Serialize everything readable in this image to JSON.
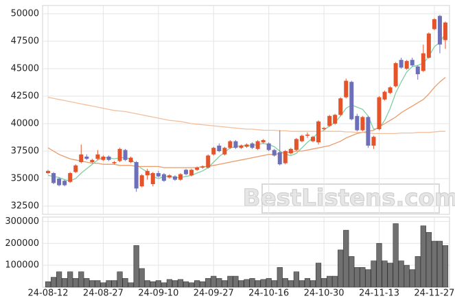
{
  "chart_data": [
    {
      "type": "candlestick",
      "categories": [
        "24-08-12",
        null,
        null,
        null,
        null,
        null,
        null,
        null,
        null,
        null,
        "24-08-27",
        null,
        null,
        null,
        null,
        null,
        null,
        null,
        null,
        null,
        "24-09-10",
        null,
        null,
        null,
        null,
        null,
        null,
        null,
        null,
        null,
        "24-09-27",
        null,
        null,
        null,
        null,
        null,
        null,
        null,
        null,
        null,
        "24-10-16",
        null,
        null,
        null,
        null,
        null,
        null,
        null,
        null,
        null,
        "24-10-30",
        null,
        null,
        null,
        null,
        null,
        null,
        null,
        null,
        null,
        "24-11-13",
        null,
        null,
        null,
        null,
        null,
        null,
        null,
        null,
        null,
        "24-11-27",
        null,
        null
      ],
      "open": [
        35500,
        35500,
        35000,
        34800,
        34700,
        35600,
        36500,
        37000,
        36500,
        36800,
        36700,
        37000,
        36400,
        36600,
        37600,
        36500,
        36500,
        34300,
        35300,
        34500,
        35500,
        35400,
        35100,
        35200,
        34900,
        35800,
        35300,
        35800,
        36000,
        36000,
        37200,
        38000,
        37200,
        37800,
        38400,
        37800,
        37900,
        38200,
        37700,
        38300,
        38200,
        37600,
        37400,
        36400,
        37300,
        37600,
        38400,
        38900,
        38400,
        38300,
        39500,
        39800,
        40000,
        40800,
        42400,
        43800,
        40700,
        39400,
        40600,
        38000,
        39500,
        42200,
        42800,
        43400,
        45800,
        45000,
        45800,
        45200,
        44800,
        46000,
        48600,
        49800,
        47600
      ],
      "high": [
        35800,
        35600,
        35100,
        34900,
        35600,
        36300,
        38100,
        37200,
        36800,
        37600,
        37100,
        37100,
        36600,
        37800,
        37700,
        37000,
        36600,
        35400,
        35900,
        35600,
        35700,
        35500,
        35400,
        35300,
        35500,
        35900,
        35900,
        36100,
        36200,
        37200,
        37900,
        38200,
        37900,
        38500,
        38500,
        38100,
        38200,
        38300,
        38500,
        38600,
        38300,
        37700,
        39400,
        37600,
        37800,
        38700,
        39000,
        39200,
        38900,
        40300,
        39700,
        40800,
        40900,
        42400,
        44100,
        43900,
        40900,
        40700,
        40700,
        38900,
        42500,
        43000,
        43400,
        45600,
        46000,
        45800,
        46000,
        45300,
        47200,
        48300,
        49600,
        49900,
        49300
      ],
      "low": [
        35400,
        34500,
        34300,
        34300,
        34600,
        35500,
        36400,
        36700,
        36400,
        36700,
        36600,
        36600,
        36300,
        36500,
        36600,
        36400,
        33800,
        34200,
        34900,
        34300,
        35100,
        34700,
        35000,
        34800,
        34800,
        35300,
        35200,
        35700,
        35900,
        35900,
        37100,
        37400,
        37100,
        37700,
        37700,
        37700,
        37800,
        37700,
        37600,
        38200,
        37500,
        37000,
        36200,
        36300,
        37200,
        37500,
        38300,
        38700,
        38300,
        38100,
        39400,
        39700,
        39900,
        40700,
        42300,
        40300,
        39300,
        39300,
        37800,
        37700,
        39400,
        42100,
        42700,
        43300,
        45000,
        44900,
        45200,
        44000,
        44700,
        45900,
        48500,
        46400,
        46800
      ],
      "close": [
        35700,
        34600,
        34400,
        34400,
        35500,
        36200,
        37200,
        36800,
        36700,
        37200,
        37000,
        36700,
        36500,
        37700,
        36700,
        36900,
        34100,
        35300,
        35700,
        35500,
        35200,
        34800,
        35300,
        34900,
        35400,
        35400,
        35800,
        36000,
        36100,
        37100,
        37800,
        37500,
        37800,
        38400,
        37800,
        38000,
        38100,
        37800,
        38400,
        38500,
        37600,
        37100,
        36300,
        37500,
        37700,
        38600,
        38900,
        39000,
        38800,
        40200,
        39600,
        40700,
        40800,
        42300,
        43900,
        40400,
        39400,
        40600,
        38000,
        38800,
        42400,
        42900,
        43300,
        45500,
        45100,
        45700,
        45300,
        44500,
        46400,
        48200,
        49500,
        47200,
        49200
      ],
      "up_color": "#e4542b",
      "down_color": "#6d70b8",
      "series": [
        {
          "color": "#7dcfa0",
          "values": [
            35300,
            35200,
            35100,
            34900,
            34800,
            35000,
            35500,
            35900,
            36300,
            36700,
            36900,
            36900,
            36800,
            36900,
            36900,
            36800,
            36300,
            35900,
            35600,
            35200,
            35000,
            35200,
            35200,
            35100,
            35100,
            35200,
            35300,
            35500,
            35700,
            36000,
            36500,
            37000,
            37400,
            37800,
            37900,
            38000,
            38000,
            38000,
            38100,
            38200,
            38100,
            37900,
            37500,
            37200,
            37100,
            37300,
            37800,
            38300,
            38700,
            39200,
            39400,
            39800,
            40100,
            40700,
            41400,
            41700,
            41500,
            41300,
            40700,
            39500,
            39600,
            40300,
            41400,
            42800,
            43800,
            44700,
            45200,
            45300,
            45500,
            46100,
            47000,
            47400,
            48200
          ]
        },
        {
          "color": "#eb9a68",
          "values": [
            37800,
            37500,
            37200,
            37000,
            36800,
            36700,
            36600,
            36500,
            36400,
            36400,
            36300,
            36300,
            36300,
            36200,
            36200,
            36200,
            36100,
            36100,
            36100,
            36100,
            36100,
            36000,
            36000,
            36000,
            36000,
            36000,
            36000,
            36000,
            36100,
            36100,
            36200,
            36300,
            36400,
            36500,
            36600,
            36700,
            36800,
            36900,
            37000,
            37100,
            37200,
            37200,
            37300,
            37400,
            37400,
            37500,
            37500,
            37600,
            37700,
            37800,
            37900,
            38000,
            38200,
            38400,
            38700,
            38900,
            39100,
            39200,
            39300,
            39400,
            39700,
            40000,
            40300,
            40600,
            41000,
            41300,
            41600,
            41900,
            42200,
            42700,
            43300,
            43800,
            44200
          ]
        },
        {
          "color": "#f2bf9c",
          "values": [
            42400,
            42300,
            42200,
            42100,
            42000,
            41900,
            41800,
            41700,
            41600,
            41500,
            41400,
            41300,
            41200,
            41150,
            41100,
            41000,
            40900,
            40800,
            40700,
            40600,
            40500,
            40400,
            40300,
            40250,
            40200,
            40100,
            40000,
            39950,
            39900,
            39850,
            39800,
            39750,
            39700,
            39650,
            39600,
            39550,
            39500,
            39500,
            39450,
            39400,
            39400,
            39400,
            39350,
            39350,
            39300,
            39300,
            39300,
            39300,
            39300,
            39300,
            39300,
            39300,
            39300,
            39300,
            39250,
            39250,
            39200,
            39200,
            39150,
            39100,
            39100,
            39100,
            39100,
            39100,
            39150,
            39150,
            39150,
            39200,
            39200,
            39200,
            39250,
            39300,
            39300
          ]
        }
      ],
      "ylim": [
        31750,
        50750
      ],
      "yticks": [
        32500,
        35000,
        37500,
        40000,
        42500,
        45000,
        47500,
        50000
      ],
      "grid": true,
      "watermark": "BestListens.com"
    },
    {
      "type": "bar",
      "values": [
        25000,
        45000,
        70000,
        40000,
        70000,
        40000,
        70000,
        40000,
        30000,
        30000,
        20000,
        30000,
        30000,
        70000,
        40000,
        20000,
        190000,
        85000,
        30000,
        25000,
        30000,
        20000,
        35000,
        30000,
        35000,
        25000,
        20000,
        30000,
        25000,
        40000,
        50000,
        40000,
        30000,
        50000,
        50000,
        30000,
        35000,
        40000,
        30000,
        35000,
        40000,
        30000,
        90000,
        40000,
        30000,
        70000,
        30000,
        40000,
        30000,
        110000,
        40000,
        50000,
        50000,
        170000,
        260000,
        140000,
        90000,
        90000,
        80000,
        120000,
        200000,
        120000,
        110000,
        290000,
        120000,
        100000,
        80000,
        140000,
        280000,
        250000,
        210000,
        210000,
        190000
      ],
      "color": "#707070",
      "ylim": [
        0,
        320000
      ],
      "yticks": [
        100000,
        200000,
        300000
      ],
      "grid": true
    }
  ]
}
